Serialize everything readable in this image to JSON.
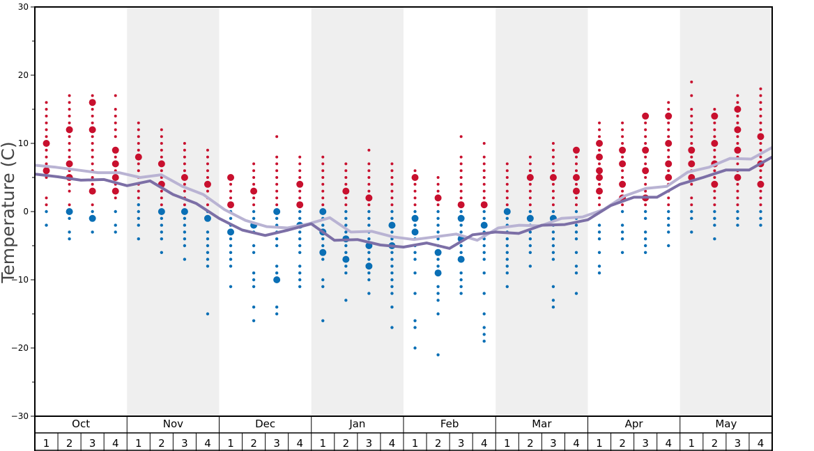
{
  "chart_data": {
    "type": "scatter",
    "title": "",
    "ylabel": "Temperature (C)",
    "xlabel": "",
    "ylim": [
      -30,
      30
    ],
    "y_ticks": [
      -30,
      -20,
      -10,
      0,
      10,
      20,
      30
    ],
    "grid": false,
    "months": [
      "Oct",
      "Nov",
      "Dec",
      "Jan",
      "Feb",
      "Mar",
      "Apr",
      "May"
    ],
    "week_labels": [
      "1",
      "2",
      "3",
      "4"
    ],
    "colors": {
      "warm_dots": "#c8102e",
      "cold_dots": "#0a6fb5",
      "line_light": "#b9b3d3",
      "line_dark": "#7c6fa6",
      "band": "#efefef",
      "axis": "#000000"
    },
    "series": [
      {
        "values": [
          6.8,
          6.5,
          6.1,
          5.7,
          5.7,
          5.0,
          5.4,
          3.7,
          2.5,
          0.3,
          -1.3,
          -2.2,
          -2.4,
          -1.8,
          -0.9,
          -3.0,
          -2.9,
          -3.7,
          -4.1,
          -3.7,
          -3.3,
          -4.2,
          -2.4,
          -2.0,
          -2.1,
          -1.0,
          -0.8,
          0.3,
          2.3,
          3.4,
          3.7,
          5.8,
          6.5,
          7.8,
          7.7,
          9.4
        ]
      },
      {
        "values": [
          5.5,
          5.1,
          4.6,
          4.7,
          3.8,
          4.5,
          2.5,
          1.2,
          -1.0,
          -2.7,
          -3.5,
          -2.7,
          -1.8,
          -4.2,
          -4.1,
          -4.9,
          -5.2,
          -4.6,
          -5.4,
          -3.4,
          -3.0,
          -3.2,
          -2.0,
          -1.9,
          -1.2,
          0.9,
          2.1,
          2.1,
          4.0,
          5.0,
          6.1,
          6.1,
          8.0
        ]
      }
    ],
    "dot_columns": [
      {
        "warm": [
          16,
          15,
          14,
          13,
          12,
          11,
          10,
          9,
          8,
          7,
          6,
          5,
          2,
          1
        ],
        "cold": [
          0,
          -2
        ],
        "big": [
          10,
          6
        ]
      },
      {
        "warm": [
          17,
          16,
          15,
          14,
          13,
          12,
          11,
          10,
          9,
          8,
          7,
          6,
          5,
          4,
          3,
          1
        ],
        "cold": [
          0,
          -1,
          -3,
          -4
        ],
        "big": [
          12,
          7,
          5,
          0
        ]
      },
      {
        "warm": [
          17,
          16,
          15,
          14,
          13,
          12,
          11,
          10,
          9,
          8,
          7,
          6,
          5,
          4,
          3,
          1
        ],
        "cold": [
          0,
          -1,
          -3
        ],
        "big": [
          16,
          12,
          3,
          -1
        ]
      },
      {
        "warm": [
          17,
          15,
          14,
          13,
          12,
          11,
          9,
          8,
          7,
          6,
          5,
          4,
          3,
          2
        ],
        "cold": [
          0,
          -2,
          -3
        ],
        "big": [
          9,
          7,
          5,
          3
        ]
      },
      {
        "warm": [
          13,
          12,
          11,
          10,
          9,
          8,
          7,
          6,
          5,
          4,
          3,
          2
        ],
        "cold": [
          1,
          0,
          -1,
          -2,
          -4
        ],
        "big": [
          8
        ]
      },
      {
        "warm": [
          12,
          11,
          10,
          9,
          8,
          7,
          6,
          5,
          4,
          3,
          2,
          1
        ],
        "cold": [
          0,
          -1,
          -2,
          -3,
          -4,
          -6
        ],
        "big": [
          7,
          4,
          0
        ]
      },
      {
        "warm": [
          10,
          9,
          8,
          7,
          6,
          5,
          4,
          3,
          2,
          1
        ],
        "cold": [
          0,
          -1,
          -2,
          -3,
          -4,
          -5,
          -7
        ],
        "big": [
          5,
          0
        ]
      },
      {
        "warm": [
          9,
          8,
          7,
          6,
          5,
          4,
          3,
          2,
          1
        ],
        "cold": [
          0,
          -1,
          -3,
          -4,
          -5,
          -6,
          -7,
          -8,
          -15
        ],
        "big": [
          4,
          -1
        ]
      },
      {
        "warm": [
          5,
          4,
          3,
          2,
          1
        ],
        "cold": [
          0,
          -1,
          -2,
          -3,
          -4,
          -5,
          -6,
          -7,
          -8,
          -11
        ],
        "big": [
          5,
          1,
          -3
        ]
      },
      {
        "warm": [
          7,
          6,
          5,
          4,
          3,
          2,
          1
        ],
        "cold": [
          0,
          -1,
          -2,
          -3,
          -5,
          -6,
          -9,
          -10,
          -11,
          -14,
          -16
        ],
        "big": [
          3,
          -2
        ]
      },
      {
        "warm": [
          11,
          8,
          7,
          6,
          5,
          4,
          3,
          2,
          1
        ],
        "cold": [
          0,
          -1,
          -2,
          -3,
          -4,
          -5,
          -8,
          -9,
          -10,
          -14,
          -15
        ],
        "big": [
          0,
          -10
        ]
      },
      {
        "warm": [
          8,
          7,
          6,
          5,
          4,
          3,
          2,
          1
        ],
        "cold": [
          0,
          -1,
          -2,
          -3,
          -4,
          -5,
          -6,
          -8,
          -9,
          -10,
          -11
        ],
        "big": [
          4,
          1,
          -2
        ]
      },
      {
        "warm": [
          8,
          7,
          6,
          5,
          4,
          3,
          2,
          1
        ],
        "cold": [
          0,
          -1,
          -2,
          -3,
          -4,
          -5,
          -6,
          -7,
          -10,
          -11,
          -16
        ],
        "big": [
          0,
          -3,
          -6
        ]
      },
      {
        "warm": [
          7,
          6,
          5,
          4,
          3,
          2,
          1
        ],
        "cold": [
          0,
          -1,
          -2,
          -3,
          -4,
          -5,
          -6,
          -7,
          -8,
          -9,
          -13
        ],
        "big": [
          3,
          -4,
          -7
        ]
      },
      {
        "warm": [
          9,
          7,
          6,
          5,
          4,
          3,
          2,
          1
        ],
        "cold": [
          0,
          -1,
          -2,
          -3,
          -4,
          -5,
          -6,
          -7,
          -8,
          -9,
          -10,
          -12
        ],
        "big": [
          2,
          -5,
          -8
        ]
      },
      {
        "warm": [
          7,
          6,
          5,
          4,
          3,
          2,
          1
        ],
        "cold": [
          0,
          -1,
          -2,
          -3,
          -4,
          -5,
          -6,
          -7,
          -8,
          -9,
          -10,
          -11,
          -12,
          -14,
          -17
        ],
        "big": [
          -2,
          -5
        ]
      },
      {
        "warm": [
          6,
          5,
          4,
          3,
          2,
          1
        ],
        "cold": [
          0,
          -1,
          -2,
          -3,
          -4,
          -5,
          -6,
          -7,
          -9,
          -12,
          -16,
          -17,
          -20
        ],
        "big": [
          5,
          -1,
          -3
        ]
      },
      {
        "warm": [
          5,
          4,
          3,
          2,
          1
        ],
        "cold": [
          0,
          -1,
          -2,
          -3,
          -4,
          -5,
          -6,
          -7,
          -8,
          -9,
          -11,
          -12,
          -13,
          -15,
          -21
        ],
        "big": [
          2,
          -6,
          -9
        ]
      },
      {
        "warm": [
          11,
          8,
          7,
          6,
          5,
          4,
          3,
          2,
          1
        ],
        "cold": [
          0,
          -1,
          -2,
          -3,
          -4,
          -5,
          -6,
          -7,
          -9,
          -10,
          -11,
          -12
        ],
        "big": [
          1,
          -1,
          -4,
          -7
        ]
      },
      {
        "warm": [
          10,
          8,
          7,
          6,
          5,
          4,
          3,
          2,
          1
        ],
        "cold": [
          0,
          -1,
          -2,
          -3,
          -4,
          -5,
          -6,
          -7,
          -9,
          -12,
          -15,
          -17,
          -18,
          -19
        ],
        "big": [
          1,
          -2
        ]
      },
      {
        "warm": [
          7,
          6,
          5,
          4,
          3,
          2,
          1
        ],
        "cold": [
          0,
          -1,
          -2,
          -3,
          -4,
          -5,
          -6,
          -7,
          -8,
          -9,
          -11
        ],
        "big": [
          0
        ]
      },
      {
        "warm": [
          8,
          7,
          6,
          5,
          4,
          3,
          2,
          1
        ],
        "cold": [
          0,
          -1,
          -2,
          -3,
          -4,
          -5,
          -6,
          -8
        ],
        "big": [
          5,
          -1
        ]
      },
      {
        "warm": [
          10,
          9,
          8,
          7,
          6,
          5,
          4,
          3,
          2,
          1
        ],
        "cold": [
          0,
          -1,
          -2,
          -3,
          -4,
          -5,
          -6,
          -7,
          -11,
          -13,
          -14
        ],
        "big": [
          5,
          -1
        ]
      },
      {
        "warm": [
          9,
          8,
          7,
          6,
          5,
          4,
          3,
          2,
          1
        ],
        "cold": [
          0,
          -1,
          -2,
          -3,
          -4,
          -6,
          -8,
          -9,
          -12
        ],
        "big": [
          9,
          5,
          3
        ]
      },
      {
        "warm": [
          13,
          12,
          11,
          10,
          9,
          8,
          7,
          6,
          5,
          4,
          3,
          2,
          1
        ],
        "cold": [
          0,
          -2,
          -3,
          -4,
          -6,
          -8,
          -9
        ],
        "big": [
          10,
          8,
          6,
          5,
          3
        ]
      },
      {
        "warm": [
          13,
          12,
          11,
          10,
          9,
          8,
          7,
          6,
          5,
          4,
          3,
          2,
          1
        ],
        "cold": [
          0,
          -2,
          -3,
          -4,
          -6
        ],
        "big": [
          9,
          7,
          4,
          2
        ]
      },
      {
        "warm": [
          14,
          13,
          12,
          11,
          10,
          9,
          8,
          7,
          6,
          5,
          4,
          3,
          2,
          1
        ],
        "cold": [
          0,
          -1,
          -3,
          -4,
          -5,
          -6
        ],
        "big": [
          14,
          9,
          6,
          2
        ]
      },
      {
        "warm": [
          16,
          15,
          14,
          13,
          12,
          11,
          10,
          9,
          8,
          7,
          6,
          5,
          4,
          3,
          2,
          1
        ],
        "cold": [
          0,
          -1,
          -2,
          -3,
          -5
        ],
        "big": [
          14,
          10,
          7,
          5
        ]
      },
      {
        "warm": [
          19,
          17,
          15,
          14,
          13,
          12,
          11,
          10,
          9,
          8,
          7,
          6,
          5,
          4,
          2,
          1
        ],
        "cold": [
          0,
          -1,
          -3
        ],
        "big": [
          9,
          7,
          5
        ]
      },
      {
        "warm": [
          15,
          14,
          13,
          12,
          11,
          10,
          9,
          8,
          7,
          6,
          5,
          4,
          3,
          2,
          1
        ],
        "cold": [
          0,
          -1,
          -2,
          -4
        ],
        "big": [
          14,
          10,
          7,
          4
        ]
      },
      {
        "warm": [
          17,
          16,
          15,
          14,
          13,
          12,
          11,
          10,
          9,
          8,
          7,
          6,
          5,
          4,
          3,
          2,
          1
        ],
        "cold": [
          0,
          -1,
          -2
        ],
        "big": [
          15,
          12,
          9,
          5
        ]
      },
      {
        "warm": [
          18,
          17,
          16,
          15,
          14,
          13,
          12,
          11,
          10,
          9,
          8,
          7,
          6,
          5,
          4,
          3,
          2,
          1
        ],
        "cold": [
          0,
          -1,
          -2
        ],
        "big": [
          11,
          7,
          4
        ]
      }
    ]
  }
}
